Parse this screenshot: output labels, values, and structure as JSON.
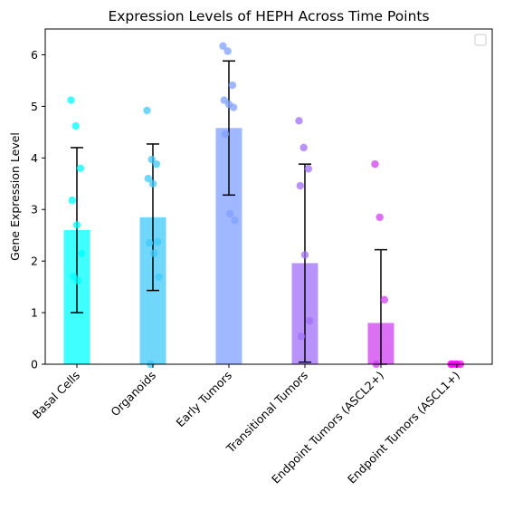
{
  "chart_data": {
    "type": "bar",
    "title": "Expression Levels of HEPH Across Time Points",
    "xlabel": "",
    "ylabel": "Gene Expression Level",
    "ylim": [
      0,
      6.5
    ],
    "yticks": [
      0,
      1,
      2,
      3,
      4,
      5,
      6
    ],
    "grid": false,
    "legend": "top-right, empty",
    "categories": [
      "Basal Cells",
      "Organoids",
      "Early Tumors",
      "Transitional Tumors",
      "Endpoint Tumors (ASCL2+)",
      "Endpoint Tumors (ASCL1+)"
    ],
    "colors": [
      "#00ffff",
      "#40c8f8",
      "#80a0ff",
      "#a070f8",
      "#d040f0",
      "#ff00ff"
    ],
    "values": [
      2.6,
      2.85,
      4.58,
      1.96,
      0.8,
      0.0
    ],
    "error": [
      1.6,
      1.42,
      1.3,
      1.92,
      1.42,
      0.0
    ],
    "points": [
      [
        5.12,
        4.62,
        3.8,
        3.18,
        2.7,
        2.15,
        1.7,
        1.62
      ],
      [
        4.92,
        3.97,
        3.88,
        3.6,
        3.5,
        2.37,
        2.35,
        2.15,
        1.69,
        0.0
      ],
      [
        6.17,
        6.07,
        5.41,
        5.12,
        5.04,
        4.98,
        4.46,
        2.92,
        2.79
      ],
      [
        4.72,
        4.2,
        3.79,
        3.46,
        2.12,
        0.84,
        0.54
      ],
      [
        3.88,
        2.85,
        1.25,
        0.0
      ],
      [
        0.0,
        0.0,
        0.0,
        0.0,
        0.0
      ]
    ]
  }
}
